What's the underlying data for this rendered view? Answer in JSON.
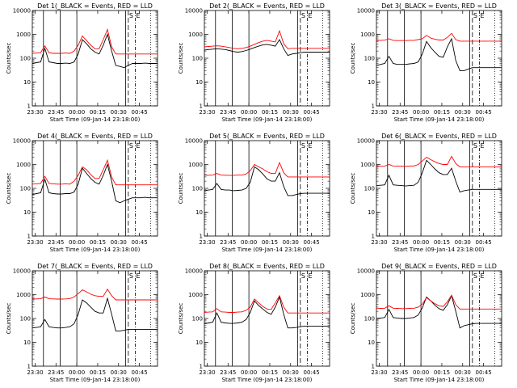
{
  "figure": {
    "ylabel": "Counts/sec",
    "xlabel": "Start Time (09-Jan-14 23:18:00)",
    "xticks": [
      "23:30",
      "23:45",
      "00:00",
      "00:15",
      "00:30",
      "00:45"
    ],
    "yticks": [
      "1",
      "10",
      "100",
      "1000",
      "10000"
    ],
    "marker_labels": [
      "S",
      "E"
    ],
    "colors": {
      "events": "#000000",
      "lld": "#ff0000",
      "axes": "#000000"
    }
  },
  "chart_data": [
    {
      "type": "line",
      "title": "Det 1(_BLACK = Events, RED = LLD",
      "ylim": [
        1,
        10000
      ],
      "yscale": "log",
      "x": [
        0,
        3,
        6,
        9,
        12,
        15,
        18,
        21,
        24,
        27,
        30,
        33,
        36,
        39,
        42,
        45,
        48,
        51,
        54,
        57,
        60,
        63,
        66,
        69,
        72,
        75,
        78,
        81,
        84,
        87,
        90
      ],
      "series": [
        {
          "name": "BLACK = Events",
          "values": [
            60,
            65,
            70,
            260,
            70,
            65,
            60,
            60,
            62,
            60,
            70,
            150,
            600,
            400,
            250,
            180,
            150,
            350,
            1000,
            200,
            50,
            45,
            40,
            50,
            60,
            60,
            60,
            62,
            60,
            60,
            60
          ]
        },
        {
          "name": "RED = LLD",
          "values": [
            160,
            165,
            170,
            330,
            170,
            160,
            160,
            160,
            165,
            160,
            200,
            350,
            850,
            550,
            350,
            250,
            250,
            600,
            1600,
            300,
            150,
            150,
            150,
            150,
            150,
            150,
            150,
            150,
            150,
            150,
            150
          ]
        }
      ]
    },
    {
      "type": "line",
      "title": "Det 2(_BLACK = Events, RED = LLD",
      "ylim": [
        1,
        10000
      ],
      "yscale": "log",
      "x": [
        0,
        3,
        6,
        9,
        12,
        15,
        18,
        21,
        24,
        27,
        30,
        33,
        36,
        39,
        42,
        45,
        48,
        51,
        54,
        57,
        60,
        63,
        66,
        69,
        72,
        75,
        78,
        81,
        84,
        87,
        90
      ],
      "series": [
        {
          "name": "BLACK = Events",
          "values": [
            220,
            230,
            240,
            250,
            240,
            230,
            210,
            190,
            180,
            190,
            210,
            240,
            280,
            320,
            360,
            380,
            350,
            320,
            600,
            250,
            130,
            150,
            160,
            170,
            180,
            180,
            180,
            180,
            180,
            180,
            180
          ]
        },
        {
          "name": "RED = LLD",
          "values": [
            300,
            310,
            320,
            330,
            320,
            300,
            280,
            260,
            250,
            260,
            280,
            320,
            380,
            450,
            520,
            560,
            520,
            480,
            1400,
            400,
            250,
            260,
            260,
            260,
            260,
            260,
            260,
            260,
            260,
            260,
            260
          ]
        }
      ]
    },
    {
      "type": "line",
      "title": "Det 3(_BLACK = Events, RED = LLD",
      "ylim": [
        1,
        10000
      ],
      "yscale": "log",
      "x": [
        0,
        3,
        6,
        9,
        12,
        15,
        18,
        21,
        24,
        27,
        30,
        33,
        36,
        39,
        42,
        45,
        48,
        51,
        54,
        57,
        60,
        63,
        66,
        69,
        72,
        75,
        78,
        81,
        84,
        87,
        90
      ],
      "series": [
        {
          "name": "BLACK = Events",
          "values": [
            50,
            55,
            60,
            120,
            60,
            55,
            55,
            55,
            58,
            60,
            70,
            150,
            500,
            280,
            180,
            120,
            110,
            300,
            650,
            80,
            30,
            30,
            35,
            40,
            40,
            40,
            40,
            40,
            40,
            40,
            40
          ]
        },
        {
          "name": "RED = LLD",
          "values": [
            550,
            560,
            570,
            650,
            560,
            550,
            550,
            550,
            560,
            560,
            600,
            650,
            900,
            700,
            620,
            580,
            580,
            750,
            1100,
            600,
            520,
            520,
            520,
            520,
            520,
            520,
            520,
            520,
            520,
            520,
            520
          ]
        }
      ]
    },
    {
      "type": "line",
      "title": "Det 4(_BLACK = Events, RED = LLD",
      "ylim": [
        1,
        10000
      ],
      "yscale": "log",
      "x": [
        0,
        3,
        6,
        9,
        12,
        15,
        18,
        21,
        24,
        27,
        30,
        33,
        36,
        39,
        42,
        45,
        48,
        51,
        54,
        57,
        60,
        63,
        66,
        69,
        72,
        75,
        78,
        81,
        84,
        87,
        90
      ],
      "series": [
        {
          "name": "BLACK = Events",
          "values": [
            55,
            60,
            65,
            240,
            65,
            60,
            58,
            58,
            60,
            60,
            70,
            150,
            700,
            420,
            260,
            180,
            150,
            350,
            1000,
            200,
            30,
            25,
            30,
            35,
            40,
            40,
            40,
            42,
            40,
            40,
            40
          ]
        },
        {
          "name": "RED = LLD",
          "values": [
            150,
            155,
            160,
            320,
            160,
            155,
            150,
            150,
            155,
            150,
            200,
            350,
            800,
            600,
            380,
            260,
            260,
            600,
            1500,
            300,
            140,
            140,
            140,
            140,
            140,
            140,
            140,
            140,
            140,
            140,
            140
          ]
        }
      ]
    },
    {
      "type": "line",
      "title": "Det 5(_BLACK = Events, RED = LLD",
      "ylim": [
        1,
        10000
      ],
      "yscale": "log",
      "x": [
        0,
        3,
        6,
        9,
        12,
        15,
        18,
        21,
        24,
        27,
        30,
        33,
        36,
        39,
        42,
        45,
        48,
        51,
        54,
        57,
        60,
        63,
        66,
        69,
        72,
        75,
        78,
        81,
        84,
        87,
        90
      ],
      "series": [
        {
          "name": "BLACK = Events",
          "values": [
            80,
            85,
            90,
            160,
            90,
            85,
            85,
            80,
            82,
            85,
            100,
            180,
            800,
            600,
            400,
            250,
            200,
            200,
            450,
            120,
            50,
            50,
            55,
            60,
            62,
            62,
            62,
            62,
            62,
            62,
            62
          ]
        },
        {
          "name": "RED = LLD",
          "values": [
            350,
            355,
            360,
            420,
            360,
            355,
            350,
            350,
            360,
            360,
            400,
            550,
            1000,
            800,
            650,
            500,
            420,
            420,
            1200,
            450,
            300,
            300,
            300,
            300,
            300,
            300,
            300,
            300,
            300,
            300,
            300
          ]
        }
      ]
    },
    {
      "type": "line",
      "title": "Det 6(_BLACK = Events, RED = LLD",
      "ylim": [
        1,
        10000
      ],
      "yscale": "log",
      "x": [
        0,
        3,
        6,
        9,
        12,
        15,
        18,
        21,
        24,
        27,
        30,
        33,
        36,
        39,
        42,
        45,
        48,
        51,
        54,
        57,
        60,
        63,
        66,
        69,
        72,
        75,
        78,
        81,
        84,
        87,
        90
      ],
      "series": [
        {
          "name": "BLACK = Events",
          "values": [
            130,
            135,
            140,
            350,
            140,
            135,
            130,
            125,
            130,
            135,
            180,
            450,
            1500,
            1000,
            650,
            450,
            380,
            380,
            700,
            200,
            70,
            80,
            85,
            90,
            90,
            90,
            90,
            90,
            90,
            90,
            90
          ]
        },
        {
          "name": "RED = LLD",
          "values": [
            850,
            850,
            860,
            1000,
            860,
            850,
            850,
            850,
            860,
            870,
            1000,
            1400,
            2000,
            1600,
            1300,
            1100,
            1000,
            1000,
            2200,
            1100,
            800,
            800,
            800,
            800,
            800,
            800,
            800,
            800,
            800,
            800,
            800
          ]
        }
      ]
    },
    {
      "type": "line",
      "title": "Det 7(_BLACK = Events, RED = LLD",
      "ylim": [
        1,
        10000
      ],
      "yscale": "log",
      "x": [
        0,
        3,
        6,
        9,
        12,
        15,
        18,
        21,
        24,
        27,
        30,
        33,
        36,
        39,
        42,
        45,
        48,
        51,
        54,
        57,
        60,
        63,
        66,
        69,
        72,
        75,
        78,
        81,
        84,
        87,
        90
      ],
      "series": [
        {
          "name": "BLACK = Events",
          "values": [
            40,
            42,
            45,
            90,
            45,
            42,
            40,
            40,
            42,
            45,
            60,
            150,
            600,
            450,
            300,
            200,
            170,
            170,
            700,
            150,
            30,
            30,
            32,
            35,
            35,
            35,
            35,
            35,
            35,
            35,
            35
          ]
        },
        {
          "name": "RED = LLD",
          "values": [
            650,
            660,
            670,
            800,
            670,
            660,
            650,
            650,
            660,
            680,
            800,
            1100,
            1600,
            1300,
            1050,
            900,
            850,
            850,
            1700,
            900,
            600,
            600,
            600,
            600,
            600,
            600,
            600,
            600,
            600,
            600,
            600
          ]
        }
      ]
    },
    {
      "type": "line",
      "title": "Det 8(_BLACK = Events, RED = LLD",
      "ylim": [
        1,
        10000
      ],
      "yscale": "log",
      "x": [
        0,
        3,
        6,
        9,
        12,
        15,
        18,
        21,
        24,
        27,
        30,
        33,
        36,
        39,
        42,
        45,
        48,
        51,
        54,
        57,
        60,
        63,
        66,
        69,
        72,
        75,
        78,
        81,
        84,
        87,
        90
      ],
      "series": [
        {
          "name": "BLACK = Events",
          "values": [
            60,
            65,
            70,
            170,
            70,
            65,
            62,
            62,
            65,
            70,
            90,
            180,
            550,
            350,
            250,
            180,
            150,
            300,
            800,
            150,
            40,
            40,
            42,
            45,
            48,
            48,
            48,
            48,
            48,
            48,
            48
          ]
        },
        {
          "name": "RED = LLD",
          "values": [
            180,
            185,
            190,
            260,
            190,
            185,
            180,
            180,
            185,
            190,
            220,
            300,
            650,
            450,
            320,
            250,
            240,
            450,
            900,
            300,
            170,
            170,
            170,
            170,
            170,
            170,
            170,
            170,
            170,
            170,
            170
          ]
        }
      ]
    },
    {
      "type": "line",
      "title": "Det 9(_BLACK = Events, RED = LLD",
      "ylim": [
        1,
        10000
      ],
      "yscale": "log",
      "x": [
        0,
        3,
        6,
        9,
        12,
        15,
        18,
        21,
        24,
        27,
        30,
        33,
        36,
        39,
        42,
        45,
        48,
        51,
        54,
        57,
        60,
        63,
        66,
        69,
        72,
        75,
        78,
        81,
        84,
        87,
        90
      ],
      "series": [
        {
          "name": "BLACK = Events",
          "values": [
            100,
            105,
            110,
            240,
            110,
            105,
            100,
            100,
            105,
            110,
            140,
            280,
            800,
            550,
            360,
            260,
            220,
            380,
            900,
            200,
            40,
            50,
            55,
            60,
            62,
            62,
            62,
            62,
            62,
            62,
            62
          ]
        },
        {
          "name": "RED = LLD",
          "values": [
            260,
            265,
            270,
            340,
            270,
            265,
            260,
            260,
            265,
            270,
            300,
            400,
            750,
            550,
            420,
            340,
            320,
            500,
            950,
            380,
            250,
            250,
            250,
            250,
            250,
            250,
            250,
            250,
            250,
            250,
            250
          ]
        }
      ]
    }
  ]
}
